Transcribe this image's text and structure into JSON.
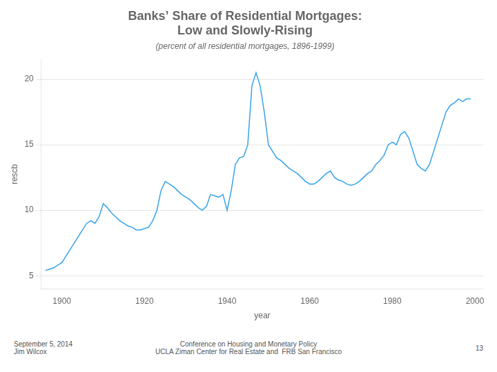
{
  "chart_data": {
    "type": "line",
    "title": [
      "Banks’ Share of Residential Mortgages:",
      "Low and Slowly-Rising"
    ],
    "subtitle": "(percent of all residential mortgages, 1896-1999)",
    "xlabel": "year",
    "ylabel": "rescb",
    "annotations": [
      "September 5, 2014\nJim Wilcox",
      "Conference on Housing and Monetary Policy\nUCLA Ziman Center for Real Estate and  FRB San Francisco",
      "13"
    ],
    "x": [
      1896,
      1897,
      1898,
      1899,
      1900,
      1901,
      1902,
      1903,
      1904,
      1905,
      1906,
      1907,
      1908,
      1909,
      1910,
      1911,
      1912,
      1913,
      1914,
      1915,
      1916,
      1917,
      1918,
      1919,
      1920,
      1921,
      1922,
      1923,
      1924,
      1925,
      1926,
      1927,
      1928,
      1929,
      1930,
      1931,
      1932,
      1933,
      1934,
      1935,
      1936,
      1937,
      1938,
      1939,
      1940,
      1941,
      1942,
      1943,
      1944,
      1945,
      1946,
      1947,
      1948,
      1949,
      1950,
      1951,
      1952,
      1953,
      1954,
      1955,
      1956,
      1957,
      1958,
      1959,
      1960,
      1961,
      1962,
      1963,
      1964,
      1965,
      1966,
      1967,
      1968,
      1969,
      1970,
      1971,
      1972,
      1973,
      1974,
      1975,
      1976,
      1977,
      1978,
      1979,
      1980,
      1981,
      1982,
      1983,
      1984,
      1985,
      1986,
      1987,
      1988,
      1989,
      1990,
      1991,
      1992,
      1993,
      1994,
      1995,
      1996,
      1997,
      1998,
      1999
    ],
    "values": [
      5.4,
      5.5,
      5.6,
      5.8,
      6.0,
      6.5,
      7.0,
      7.5,
      8.0,
      8.5,
      9.0,
      9.2,
      9.0,
      9.5,
      10.5,
      10.2,
      9.8,
      9.5,
      9.2,
      9.0,
      8.8,
      8.7,
      8.5,
      8.5,
      8.6,
      8.7,
      9.2,
      10.0,
      11.5,
      12.2,
      12.0,
      11.8,
      11.5,
      11.2,
      11.0,
      10.8,
      10.5,
      10.2,
      10.0,
      10.3,
      11.2,
      11.1,
      11.0,
      11.2,
      10.0,
      11.5,
      13.5,
      14.0,
      14.1,
      15.0,
      19.5,
      20.5,
      19.5,
      17.5,
      15.0,
      14.5,
      14.0,
      13.8,
      13.5,
      13.2,
      13.0,
      12.8,
      12.5,
      12.2,
      12.0,
      12.0,
      12.2,
      12.5,
      12.8,
      13.0,
      12.5,
      12.3,
      12.2,
      12.0,
      11.9,
      12.0,
      12.2,
      12.5,
      12.8,
      13.0,
      13.5,
      13.8,
      14.2,
      15.0,
      15.2,
      15.0,
      15.8,
      16.0,
      15.5,
      14.5,
      13.5,
      13.2,
      13.0,
      13.5,
      14.5,
      15.5,
      16.5,
      17.5,
      18.0,
      18.2,
      18.5,
      18.3,
      18.5,
      18.5
    ],
    "xlim": [
      1895,
      2002
    ],
    "xticks": [
      1900,
      1920,
      1940,
      1960,
      1980,
      2000
    ],
    "ylim": [
      4,
      21.5
    ],
    "yticks": [
      5,
      10,
      15,
      20
    ],
    "grid": "y"
  }
}
